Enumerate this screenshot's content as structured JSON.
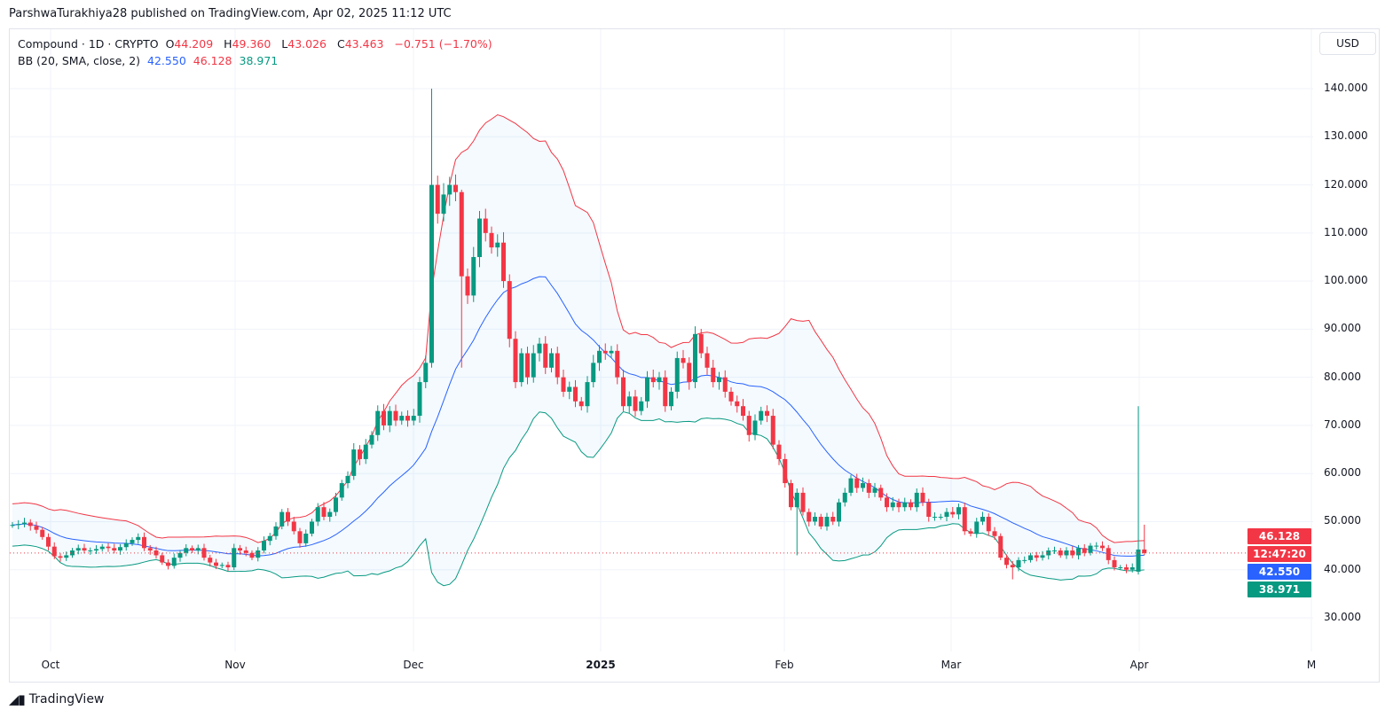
{
  "publish_line": "ParshwaTurakhiya28 published on TradingView.com, Apr 02, 2025 11:12 UTC",
  "legend": {
    "symbol": "Compound · 1D · CRYPTO",
    "o_label": "O",
    "o": "44.209",
    "h_label": "H",
    "h": "49.360",
    "l_label": "L",
    "l": "43.026",
    "c_label": "C",
    "c": "43.463",
    "change": "−0.751 (−1.70%)",
    "bb_label": "BB (20, SMA, close, 2)",
    "bb_basis": "42.550",
    "bb_upper": "46.128",
    "bb_lower": "38.971"
  },
  "currency_button": "USD",
  "price_labels": {
    "upper": "46.128",
    "countdown": "12:47:20",
    "basis": "42.550",
    "lower": "38.971"
  },
  "footer_brand": "TradingView",
  "colors": {
    "up": "#089981",
    "down": "#f23645",
    "basis": "#2962ff",
    "upper": "#f23645",
    "lower": "#089981",
    "band_fill": "#2196f3"
  },
  "chart_data": {
    "type": "candlestick",
    "title": "Compound · 1D · CRYPTO",
    "ylim": [
      20,
      152
    ],
    "y_ticks": [
      "30.000",
      "40.000",
      "50.000",
      "60.000",
      "70.000",
      "80.000",
      "90.000",
      "100.000",
      "110.000",
      "120.000",
      "130.000",
      "140.000"
    ],
    "x_ticks": [
      "Oct",
      "Nov",
      "Dec",
      "2025",
      "Feb",
      "Mar",
      "Apr",
      "M"
    ],
    "grid": true,
    "indicator": "Bollinger Bands (20, SMA, close, 2)",
    "last_close": 43.463,
    "close": [
      49.3,
      49.5,
      49.8,
      49.1,
      48.3,
      46.8,
      44.8,
      42.8,
      42.5,
      43,
      44,
      44.5,
      44,
      44,
      44.3,
      44.8,
      44.5,
      44,
      44.7,
      45.5,
      46.2,
      46.8,
      44.5,
      44,
      43,
      41.5,
      40.8,
      42.5,
      43.5,
      44.5,
      44,
      44.5,
      42.5,
      41.5,
      40.8,
      41,
      40.5,
      44.5,
      44,
      43.5,
      42.5,
      44,
      46,
      47,
      49,
      52,
      50,
      48,
      45.5,
      47.5,
      50,
      53,
      51,
      52,
      55,
      58,
      59.5,
      65,
      63,
      66,
      68,
      73,
      70,
      73,
      71,
      72,
      71,
      72,
      79,
      83,
      120,
      114,
      118,
      120,
      118.5,
      101,
      97,
      105,
      113,
      110,
      107,
      108,
      100,
      88,
      79,
      85,
      80,
      85,
      87,
      82,
      85,
      80,
      77,
      78,
      75,
      74,
      79,
      83,
      85.5,
      85,
      85.5,
      80,
      74,
      76,
      73,
      75,
      80,
      79,
      80,
      74,
      77,
      84,
      83,
      79,
      89,
      85,
      82,
      79,
      80,
      77,
      75,
      74,
      72,
      68,
      71,
      73,
      72,
      66,
      63,
      58,
      53,
      56,
      52,
      50,
      51,
      49,
      51,
      50,
      54,
      56,
      59,
      57,
      58,
      56,
      57,
      55,
      53,
      54,
      53,
      54,
      53,
      56,
      54,
      51,
      51,
      51,
      52,
      51.5,
      53,
      48,
      47.5,
      50,
      51,
      48,
      47,
      42.5,
      41,
      40.5,
      42,
      42,
      43,
      42.5,
      43,
      44,
      44,
      43,
      44,
      43,
      44.5,
      43.5,
      45,
      45,
      44.5,
      42,
      40.5,
      40.5,
      40,
      40.5,
      44.2,
      43.463
    ],
    "notable_candles": {
      "2024-12-04": {
        "o": 83,
        "h": 140,
        "l": 82,
        "c": 120
      },
      "2024-12-09": {
        "h": 119,
        "l": 82
      },
      "2025-02-03": {
        "l": 43
      },
      "2025-03-11": {
        "l": 38
      },
      "2025-04-01": {
        "o": 39.6,
        "h": 74,
        "l": 39,
        "c": 44.2
      },
      "2025-04-02": {
        "o": 44.209,
        "h": 49.36,
        "l": 43.026,
        "c": 43.463
      }
    }
  }
}
